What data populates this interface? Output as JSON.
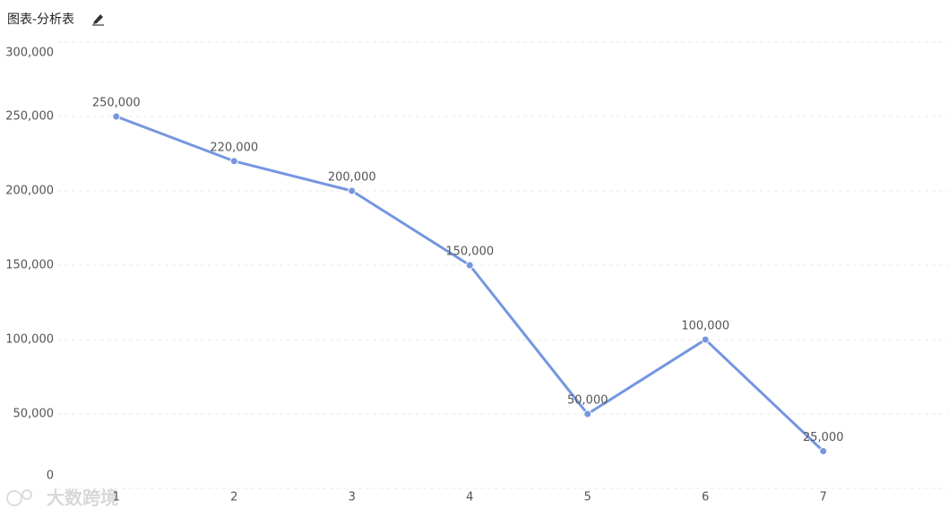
{
  "chart_data": {
    "type": "line",
    "title": "图表-分析表",
    "categories": [
      "1",
      "2",
      "3",
      "4",
      "5",
      "6",
      "7"
    ],
    "series": [
      {
        "name": "value",
        "color": "#7596e0",
        "values": [
          250000,
          220000,
          200000,
          150000,
          50000,
          100000,
          25000
        ],
        "value_labels": [
          "250,000",
          "220,000",
          "200,000",
          "150,000",
          "50,000",
          "100,000",
          "25,000"
        ]
      }
    ],
    "ylim": [
      0,
      300000
    ],
    "yticks": [
      0,
      {
        "value": 50000,
        "label": "50,000"
      },
      {
        "value": 100000,
        "label": "100,000"
      },
      {
        "value": 150000,
        "label": "150,000"
      },
      {
        "value": 200000,
        "label": "200,000"
      },
      {
        "value": 250000,
        "label": "250,000"
      },
      {
        "value": 300000,
        "label": "300,000"
      }
    ],
    "grid": true
  },
  "watermark": "大数跨境"
}
